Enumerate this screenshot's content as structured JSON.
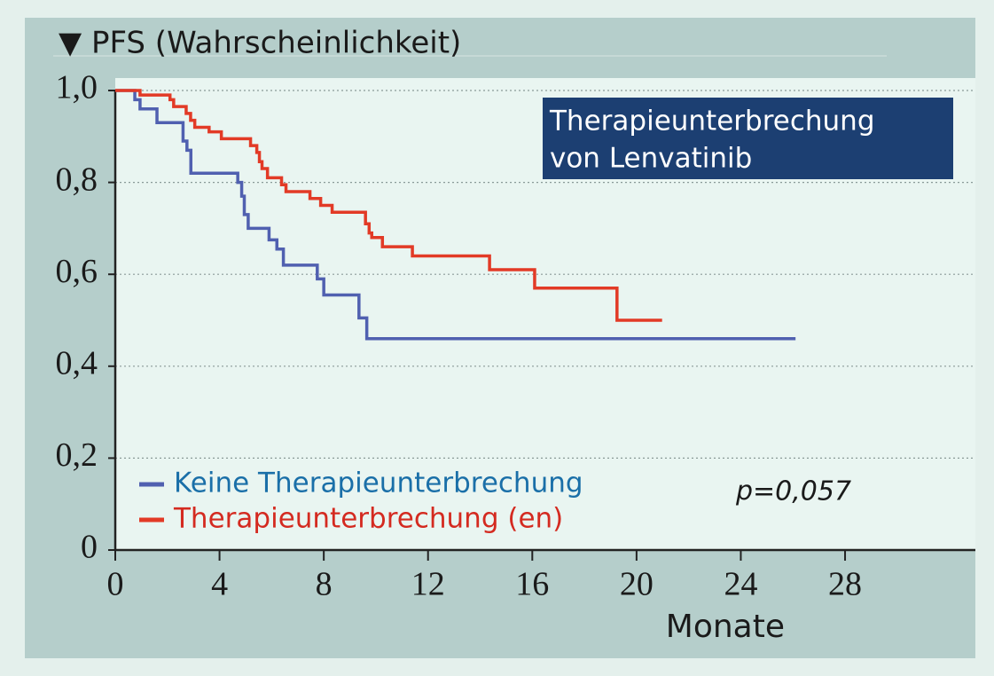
{
  "chart_data": {
    "type": "step",
    "title": "▼ PFS (Wahrscheinlichkeit)",
    "box_text": [
      "Therapieunterbrechung",
      "von Lenvatinib"
    ],
    "p_value": "p=0,057",
    "x_label": "Monate",
    "xlim": [
      0,
      33
    ],
    "ylim": [
      0,
      1
    ],
    "xticks": [
      0,
      4,
      8,
      12,
      16,
      20,
      24,
      28
    ],
    "yticks": [
      {
        "value": 0,
        "label": "0"
      },
      {
        "value": 0.2,
        "label": "0,2"
      },
      {
        "value": 0.4,
        "label": "0,4"
      },
      {
        "value": 0.6,
        "label": "0,6"
      },
      {
        "value": 0.8,
        "label": "0,8"
      },
      {
        "value": 1,
        "label": "1,0"
      }
    ],
    "grid": true,
    "series": [
      {
        "name": "Keine Therapieunterbrechung",
        "color": "#5060b0",
        "label_color": "#1a6fa8",
        "x": [
          0,
          0.75,
          0.95,
          1.6,
          2.6,
          2.75,
          2.9,
          4.7,
          4.85,
          4.95,
          5.1,
          5.9,
          6.2,
          6.45,
          7.75,
          8.0,
          9.35,
          9.65,
          26.1
        ],
        "values": [
          1,
          0.98,
          0.96,
          0.93,
          0.89,
          0.87,
          0.82,
          0.8,
          0.77,
          0.73,
          0.7,
          0.675,
          0.655,
          0.62,
          0.59,
          0.555,
          0.505,
          0.46,
          0.46
        ]
      },
      {
        "name": "Therapieunterbrechung (en)",
        "color": "#e23a26",
        "label_color": "#d42a20",
        "x": [
          0,
          0.95,
          2.1,
          2.24,
          2.72,
          2.89,
          3.05,
          3.6,
          4.07,
          5.19,
          5.43,
          5.53,
          5.63,
          5.84,
          6.38,
          6.55,
          7.47,
          7.88,
          8.32,
          9.6,
          9.74,
          9.84,
          10.25,
          11.4,
          14.36,
          16.09,
          19.25,
          20.98
        ],
        "values": [
          1,
          0.99,
          0.98,
          0.965,
          0.95,
          0.935,
          0.92,
          0.91,
          0.895,
          0.88,
          0.865,
          0.845,
          0.83,
          0.81,
          0.795,
          0.78,
          0.765,
          0.75,
          0.735,
          0.71,
          0.69,
          0.68,
          0.66,
          0.64,
          0.61,
          0.57,
          0.5,
          0.5
        ]
      }
    ]
  }
}
